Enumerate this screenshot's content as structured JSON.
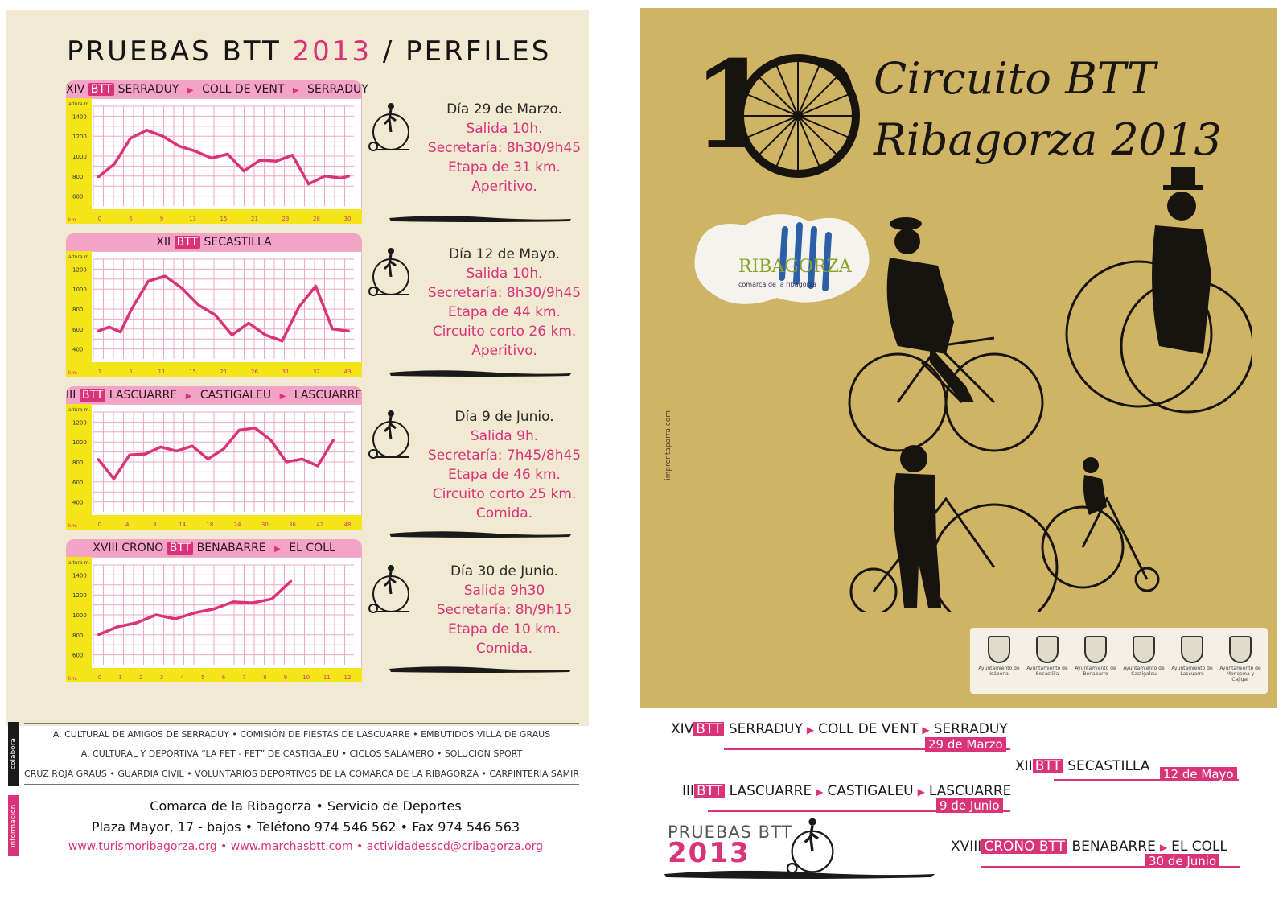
{
  "left": {
    "title_prefix": "PRUEBAS BTT",
    "title_year": "2013",
    "title_suffix": "/ PERFILES",
    "y_axis_label": "altura m.",
    "x_axis_label": "km.",
    "sections": [
      {
        "header": {
          "pre": "XIV",
          "btt": "BTT",
          "parts": [
            "SERRADUY",
            "COLL DE VENT",
            "SERRADUY"
          ]
        },
        "y_ticks": [
          "1400",
          "1200",
          "1000",
          "800",
          "600"
        ],
        "x_ticks": [
          "0",
          "6",
          "9",
          "13",
          "15",
          "21",
          "23",
          "28",
          "30"
        ],
        "info": [
          "Día 29 de Marzo.",
          "Salida 10h.",
          "Secretaría: 8h30/9h45",
          "Etapa de 31 km.",
          "Aperitivo."
        ]
      },
      {
        "header": {
          "pre": "XII",
          "btt": "BTT",
          "parts": [
            "SECASTILLA"
          ]
        },
        "y_ticks": [
          "1200",
          "1000",
          "800",
          "600",
          "400"
        ],
        "x_ticks": [
          "1",
          "5",
          "11",
          "15",
          "21",
          "26",
          "31",
          "37",
          "43"
        ],
        "info": [
          "Día 12 de Mayo.",
          "Salida 10h.",
          "Secretaría: 8h30/9h45",
          "Etapa de 44 km.",
          "Circuito corto 26 km.",
          "Aperitivo."
        ]
      },
      {
        "header": {
          "pre": "III",
          "btt": "BTT",
          "parts": [
            "LASCUARRE",
            "CASTIGALEU",
            "LASCUARRE"
          ]
        },
        "y_ticks": [
          "1200",
          "1000",
          "800",
          "600",
          "400"
        ],
        "x_ticks": [
          "0",
          "4",
          "8",
          "14",
          "18",
          "24",
          "30",
          "36",
          "42",
          "48"
        ],
        "info": [
          "Día 9 de Junio.",
          "Salida 9h.",
          "Secretaría: 7h45/8h45",
          "Etapa de 46 km.",
          "Circuito corto 25 km.",
          "Comida."
        ]
      },
      {
        "header": {
          "pre": "XVIII CRONO",
          "btt": "BTT",
          "parts": [
            "BENABARRE",
            "EL COLL"
          ]
        },
        "y_ticks": [
          "1400",
          "1200",
          "1000",
          "800",
          "600"
        ],
        "x_ticks": [
          "0",
          "1",
          "2",
          "3",
          "4",
          "5",
          "6",
          "7",
          "8",
          "9",
          "10",
          "11",
          "12"
        ],
        "info": [
          "Día 30 de Junio.",
          "Salida 9h30",
          "Secretaría: 8h/9h15",
          "Etapa de 10 km.",
          "Comida."
        ]
      }
    ],
    "colabora_tag": "colabora",
    "info_tag": "información",
    "sponsors": [
      "A. CULTURAL DE AMIGOS DE SERRADUY • COMISIÓN DE FIESTAS DE LASCUARRE • EMBUTIDOS VILLA DE GRAUS",
      "A. CULTURAL Y DEPORTIVA “LA FET - FET” DE CASTIGALEU • CICLOS SALAMERO • SOLUCION SPORT",
      "CRUZ ROJA GRAUS • GUARDIA CIVIL • VOLUNTARIOS DEPORTIVOS DE LA COMARCA DE LA RIBAGORZA • CARPINTERIA SAMIR"
    ],
    "contact": [
      "Comarca de la Ribagorza  •  Servicio de Deportes",
      "Plaza Mayor, 17 - bajos  •  Teléfono 974 546 562  •  Fax 974 546 563",
      "www.turismoribagorza.org • www.marchasbtt.com • actividadesscd@cribagorza.org"
    ]
  },
  "right": {
    "big_number": "10",
    "title_lines": [
      "Circuito BTT",
      "Ribagorza 2013"
    ],
    "logo_text": "RIBAGORZA",
    "logo_sub": "comarca de la ribagorza",
    "credit": "imprentaparra.com",
    "shields": [
      "Ayuntamiento de Isábena",
      "Ayuntamiento de Secastilla",
      "Ayuntamiento de Benabarre",
      "Ayuntamiento de Castigaleu",
      "Ayuntamiento de Lascuarre",
      "Ayuntamiento de Monesma y Cajigar"
    ],
    "events": [
      {
        "pre": "XIV",
        "btt": "BTT",
        "parts": [
          "SERRADUY",
          "COLL DE VENT",
          "SERRADUY"
        ],
        "date": "29 de Marzo"
      },
      {
        "pre": "XII",
        "btt": "BTT",
        "parts": [
          "SECASTILLA"
        ],
        "date": "12 de Mayo"
      },
      {
        "pre": "III",
        "btt": "BTT",
        "parts": [
          "LASCUARRE",
          "CASTIGALEU",
          "LASCUARRE"
        ],
        "date": "9 de Junio"
      },
      {
        "pre": "XVIII",
        "btt": "CRONO BTT",
        "parts": [
          "BENABARRE",
          "EL COLL"
        ],
        "date": "30 de Junio"
      }
    ],
    "pruebas_label": "PRUEBAS BTT",
    "pruebas_year": "2013"
  },
  "colors": {
    "pink": "#d9347a",
    "light_pink": "#f3a3c5",
    "paper": "#f1e9d1",
    "poster": "#cfb466",
    "axis_yellow": "#f4e51a"
  },
  "chart_data": [
    {
      "type": "line",
      "title": "XIV BTT SERRADUY > COLL DE VENT > SERRADUY",
      "xlabel": "km.",
      "ylabel": "altura m.",
      "xlim": [
        0,
        31
      ],
      "ylim": [
        500,
        1500
      ],
      "x": [
        0,
        2,
        4,
        6,
        8,
        10,
        12,
        14,
        16,
        18,
        20,
        22,
        24,
        26,
        28,
        30,
        31
      ],
      "y": [
        790,
        920,
        1180,
        1260,
        1200,
        1100,
        1050,
        980,
        1020,
        850,
        960,
        950,
        1010,
        720,
        800,
        780,
        800
      ]
    },
    {
      "type": "line",
      "title": "XII BTT SECASTILLA",
      "xlabel": "km.",
      "ylabel": "altura m.",
      "xlim": [
        0,
        45
      ],
      "ylim": [
        300,
        1300
      ],
      "x": [
        0,
        2,
        4,
        6,
        9,
        12,
        15,
        18,
        21,
        24,
        27,
        30,
        33,
        36,
        39,
        42,
        45
      ],
      "y": [
        580,
        620,
        570,
        800,
        1080,
        1130,
        1010,
        840,
        740,
        540,
        660,
        540,
        480,
        820,
        1030,
        600,
        580
      ]
    },
    {
      "type": "line",
      "title": "III BTT LASCUARRE > CASTIGALEU > LASCUARRE",
      "xlabel": "km.",
      "ylabel": "altura m.",
      "xlim": [
        0,
        48
      ],
      "ylim": [
        300,
        1300
      ],
      "x": [
        0,
        3,
        6,
        9,
        12,
        15,
        18,
        21,
        24,
        27,
        30,
        33,
        36,
        39,
        42,
        45
      ],
      "y": [
        830,
        630,
        870,
        880,
        950,
        910,
        960,
        830,
        930,
        1120,
        1140,
        1020,
        800,
        830,
        760,
        1020
      ]
    },
    {
      "type": "line",
      "title": "XVIII CRONO BTT BENABARRE > EL COLL",
      "xlabel": "km.",
      "ylabel": "altura m.",
      "xlim": [
        0,
        13
      ],
      "ylim": [
        500,
        1500
      ],
      "x": [
        0,
        1,
        2,
        3,
        4,
        5,
        6,
        7,
        8,
        9,
        10
      ],
      "y": [
        800,
        880,
        920,
        1000,
        960,
        1020,
        1060,
        1130,
        1120,
        1160,
        1340
      ]
    }
  ]
}
